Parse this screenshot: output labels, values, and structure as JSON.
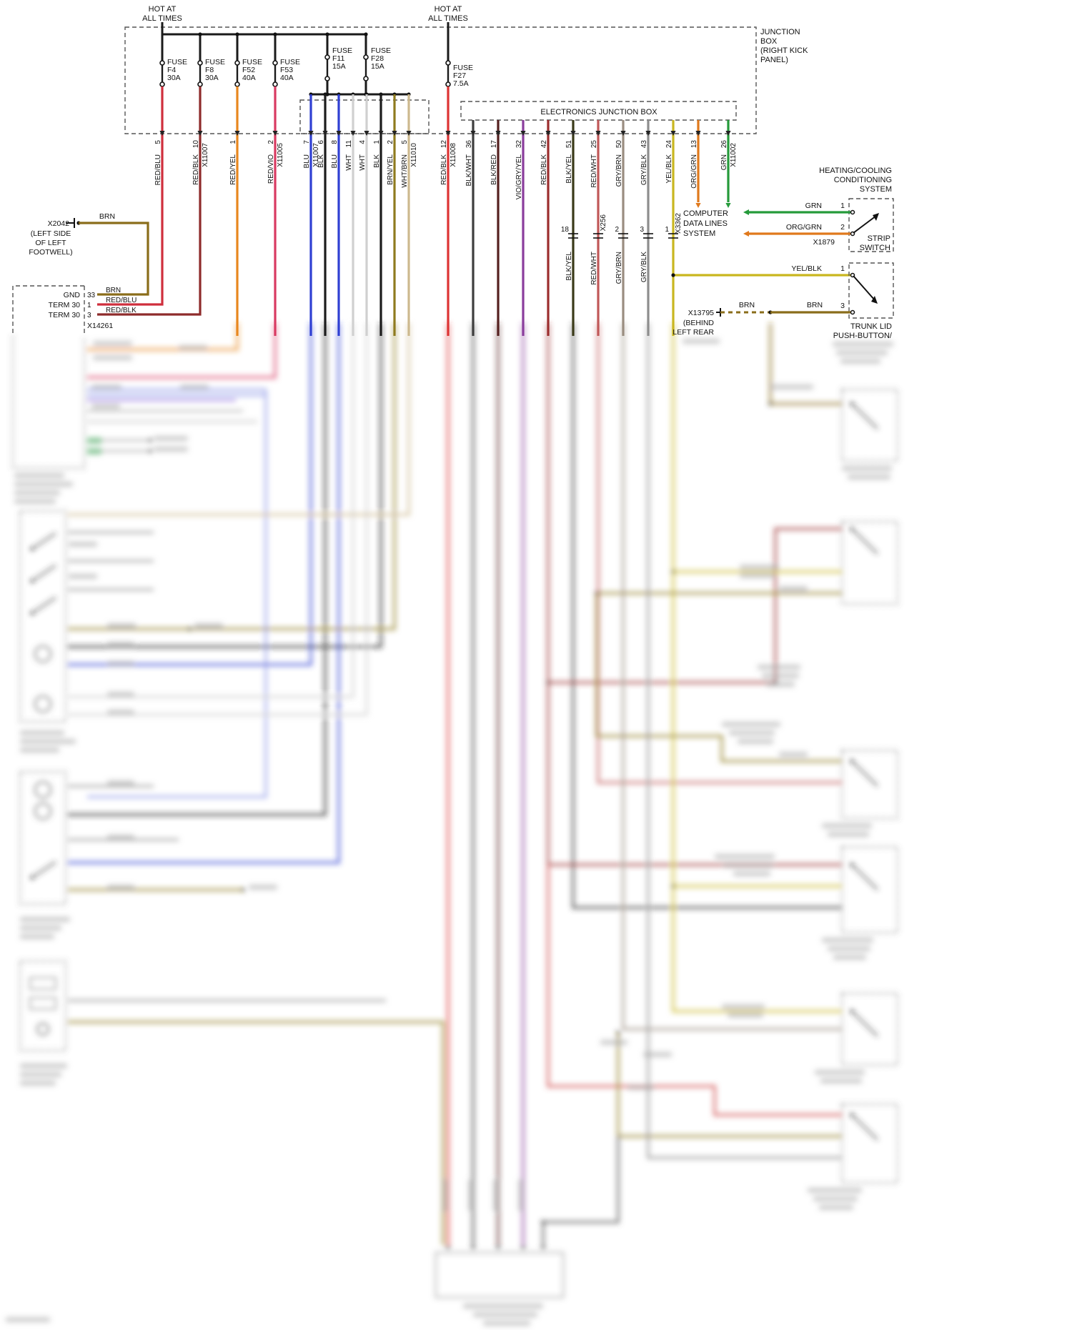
{
  "palette": {
    "grn": "#259a3a",
    "org_grn": "#e0791c",
    "yel_blk": "#c9b61f",
    "brn": "#8a6d1a"
  },
  "top": {
    "hot_left": [
      "HOT AT",
      "ALL TIMES"
    ],
    "hot_right": [
      "HOT AT",
      "ALL TIMES"
    ],
    "junction_box": [
      "JUNCTION",
      "BOX",
      "(RIGHT KICK",
      "PANEL)"
    ],
    "ejb": "ELECTRONICS JUNCTION BOX"
  },
  "fuses": [
    {
      "l1": "FUSE",
      "l2": "F4",
      "l3": "30A"
    },
    {
      "l1": "FUSE",
      "l2": "F8",
      "l3": "30A"
    },
    {
      "l1": "FUSE",
      "l2": "F52",
      "l3": "40A"
    },
    {
      "l1": "FUSE",
      "l2": "F53",
      "l3": "40A"
    },
    {
      "l1": "FUSE",
      "l2": "F11",
      "l3": "15A"
    },
    {
      "l1": "FUSE",
      "l2": "F28",
      "l3": "15A"
    },
    {
      "l1": "FUSE",
      "l2": "F27",
      "l3": "7.5A"
    }
  ],
  "wires": [
    {
      "pin": "5",
      "color": "RED/BLU",
      "hex": "#cf2e3c"
    },
    {
      "pin": "10",
      "color": "RED/BLK",
      "conn": "X11007",
      "hex": "#8e2b2b"
    },
    {
      "pin": "1",
      "color": "RED/YEL",
      "hex": "#e8871e"
    },
    {
      "pin": "2",
      "color": "RED/VIO",
      "conn": "X11005",
      "hex": "#d93a62"
    },
    {
      "pin": "7",
      "color": "BLU",
      "conn": "X11007",
      "hex": "#2f3fd3"
    },
    {
      "pin": "6",
      "color": "BLK",
      "hex": "#1c1c1c"
    },
    {
      "pin": "8",
      "color": "BLU",
      "hex": "#2f3fd3"
    },
    {
      "pin": "11",
      "color": "WHT",
      "hex": "#d0d0d0"
    },
    {
      "pin": "4",
      "color": "WHT",
      "hex": "#d0d0d0"
    },
    {
      "pin": "1",
      "color": "BLK",
      "hex": "#1c1c1c"
    },
    {
      "pin": "2",
      "color": "BRN/YEL",
      "hex": "#8f7b1f"
    },
    {
      "pin": "5",
      "color": "WHT/BRN",
      "conn": "X11010",
      "hex": "#cdb98e"
    },
    {
      "pin": "12",
      "color": "RED/BLK",
      "conn": "X11008",
      "hex": "#dd3333"
    },
    {
      "pin": "36",
      "color": "BLK/WHT",
      "hex": "#3d3d3d"
    },
    {
      "pin": "17",
      "color": "BLK/RED",
      "hex": "#55201f"
    },
    {
      "pin": "32",
      "color": "VIO/GRY/YEL",
      "hex": "#8a3c9c"
    },
    {
      "pin": "42",
      "color": "RED/BLK",
      "hex": "#9b2d2d"
    },
    {
      "pin": "51",
      "color": "BLK/YEL",
      "hex": "#3a3a18"
    },
    {
      "pin": "25",
      "color": "RED/WHT",
      "hex": "#c05858"
    },
    {
      "pin": "50",
      "color": "GRY/BRN",
      "hex": "#9a8d80"
    },
    {
      "pin": "43",
      "color": "GRY/BLK",
      "hex": "#8d8d8d"
    },
    {
      "pin": "24",
      "color": "YEL/BLK",
      "hex": "#c9b61f"
    },
    {
      "pin": "13",
      "color": "ORG/GRN",
      "hex": "#e0791c"
    },
    {
      "pin": "26",
      "color": "GRN",
      "conn": "X11002",
      "hex": "#259a3a"
    }
  ],
  "x256": {
    "label": "X256",
    "pins": [
      "18",
      "",
      "2",
      "3"
    ],
    "colors": [
      "BLK/YEL",
      "RED/WHT",
      "GRY/BRN",
      "GRY/BLK"
    ]
  },
  "x3362": {
    "label": "X3362",
    "pin": "1"
  },
  "computer": [
    "COMPUTER",
    "DATA LINES",
    "SYSTEM"
  ],
  "heating": [
    "HEATING/COOLING",
    "CONDITIONING",
    "SYSTEM"
  ],
  "strip_switch": {
    "grn": "GRN",
    "grn_pin": "1",
    "org": "ORG/GRN",
    "org_pin": "2",
    "conn": "X1879",
    "title": [
      "STRIP",
      "SWITCH"
    ]
  },
  "trunk_switch": {
    "yel": "YEL/BLK",
    "yel_pin": "1",
    "brn1": "BRN",
    "brn2": "BRN",
    "brn_pin": "3",
    "conn": "X13795",
    "loc": [
      "(BEHIND",
      "LEFT REAR"
    ],
    "title": [
      "TRUNK LID",
      "PUSH-BUTTON/"
    ]
  },
  "x2042": {
    "label": "X2042",
    "wire": "BRN",
    "loc": [
      "(LEFT SIDE",
      "OF LEFT",
      "FOOTWELL)"
    ]
  },
  "ground": {
    "conn": "X14261",
    "rows": [
      {
        "name": "GND",
        "pin": "33",
        "wire": "BRN"
      },
      {
        "name": "TERM 30",
        "pin": "1",
        "wire": "RED/BLU"
      },
      {
        "name": "TERM 30",
        "pin": "3",
        "wire": "RED/BLK"
      }
    ]
  }
}
